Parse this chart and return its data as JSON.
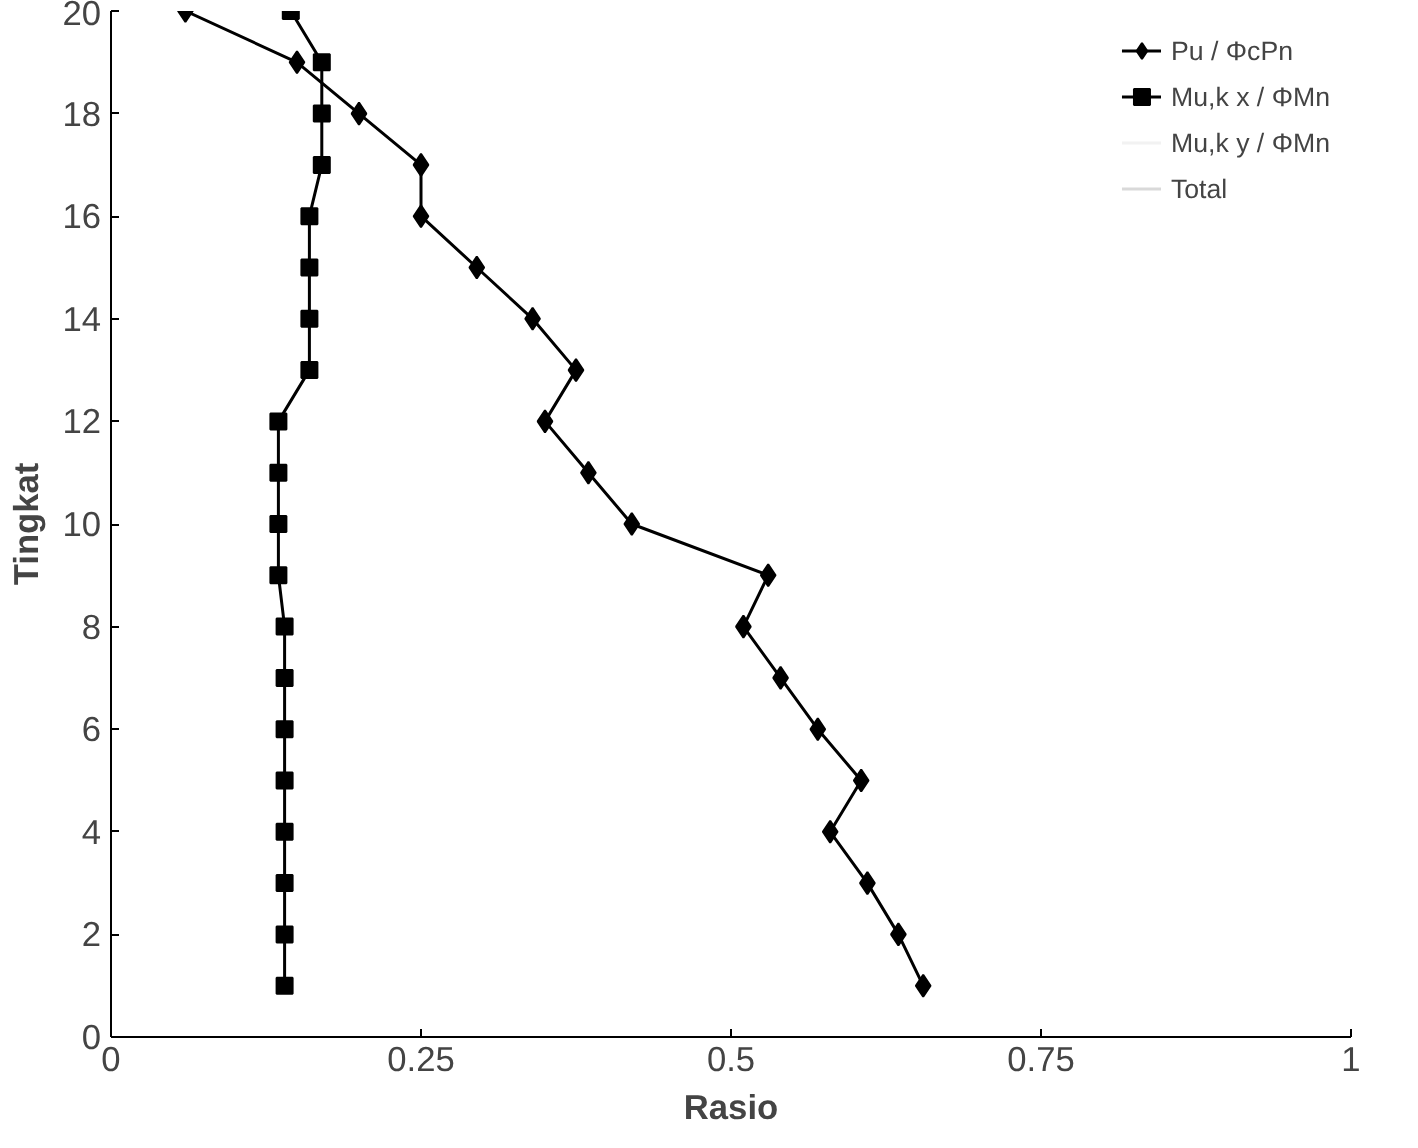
{
  "chart_data": {
    "type": "line",
    "xlabel": "Rasio",
    "ylabel": "Tingkat",
    "xlim": [
      0,
      1
    ],
    "ylim": [
      0,
      20
    ],
    "xticks": [
      0,
      0.25,
      0.5,
      0.75,
      1
    ],
    "yticks": [
      0,
      2,
      4,
      6,
      8,
      10,
      12,
      14,
      16,
      18,
      20
    ],
    "grid": false,
    "legend": "top right",
    "line_style": "solid",
    "series": [
      {
        "name": "Pu / ΦcPn",
        "color": "#000000",
        "marker": "diamond",
        "x": [
          0.06,
          0.15,
          0.2,
          0.25,
          0.25,
          0.295,
          0.34,
          0.375,
          0.35,
          0.385,
          0.42,
          0.53,
          0.51,
          0.54,
          0.57,
          0.605,
          0.58,
          0.61,
          0.635,
          0.655
        ],
        "values": [
          20,
          19,
          18,
          17,
          16,
          15,
          14,
          13,
          12,
          11,
          10,
          9,
          8,
          7,
          6,
          5,
          4,
          3,
          2,
          1
        ]
      },
      {
        "name": "Mu,k x / ΦMn",
        "color": "#000000",
        "marker": "square",
        "x": [
          0.145,
          0.17,
          0.17,
          0.17,
          0.16,
          0.16,
          0.16,
          0.16,
          0.135,
          0.135,
          0.135,
          0.135,
          0.14,
          0.14,
          0.14,
          0.14,
          0.14,
          0.14,
          0.14,
          0.14
        ],
        "values": [
          20,
          19,
          18,
          17,
          16,
          15,
          14,
          13,
          12,
          11,
          10,
          9,
          8,
          7,
          6,
          5,
          4,
          3,
          2,
          1
        ]
      },
      {
        "name": "Mu,k y / ΦMn",
        "color": "#f2f2f2",
        "marker": "none",
        "x": [
          null
        ],
        "values": [
          null
        ]
      },
      {
        "name": "Total",
        "color": "#d9d9d9",
        "marker": "none",
        "x": [
          null
        ],
        "values": [
          null
        ]
      }
    ]
  }
}
